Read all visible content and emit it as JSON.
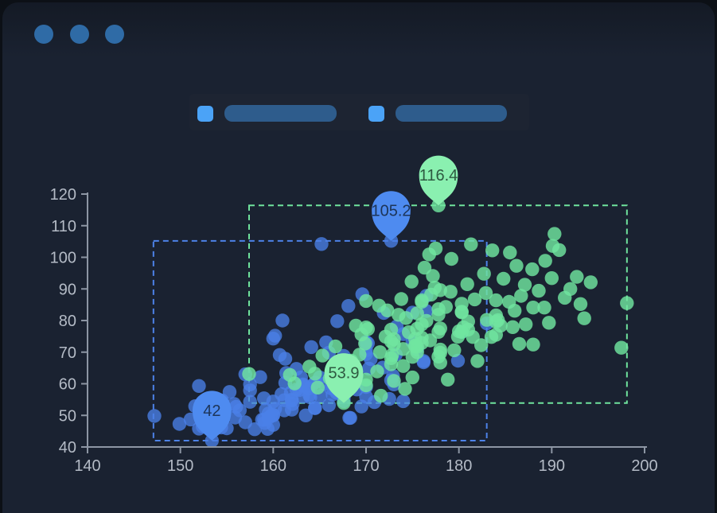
{
  "window": {
    "controls": [
      {
        "name": "window-dot-1",
        "color": "#2f6ba6"
      },
      {
        "name": "window-dot-2",
        "color": "#2f6ba6"
      },
      {
        "name": "window-dot-3",
        "color": "#2f6ba6"
      }
    ],
    "background": "#1a2231",
    "outer_background": "#0c1016"
  },
  "legend": {
    "items": [
      {
        "swatch_color": "#4ba3f7",
        "bar_color": "#2e5c8c"
      },
      {
        "swatch_color": "#4ba3f7",
        "bar_color": "#2e5c8c"
      }
    ]
  },
  "chart_data": {
    "type": "scatter",
    "title": "",
    "xlabel": "",
    "ylabel": "",
    "grid": false,
    "legend_position": "top",
    "x_axis": {
      "min": 140,
      "max": 200,
      "ticks": [
        140,
        150,
        160,
        170,
        180,
        190,
        200
      ]
    },
    "y_axis": {
      "min": 40,
      "max": 120,
      "ticks": [
        40,
        50,
        60,
        70,
        80,
        90,
        100,
        110,
        120
      ]
    },
    "axis_color": "#8d96a4",
    "tick_label_color": "#b4bbc6",
    "series": [
      {
        "name": "blue",
        "dot_color": "#4a80e8",
        "dot_opacity": 0.78,
        "pin_color": "#4e8bf0",
        "pin_label_color": "#1d3558",
        "area_stroke": "#4d82e8",
        "mark_area": {
          "x": [
            147.1,
            183.0
          ],
          "y": [
            42,
            105.2
          ]
        },
        "mark_points": [
          {
            "label": "105.2",
            "coord": [
              172.7,
              105.2
            ]
          },
          {
            "label": "42",
            "coord": [
              153.4,
              42
            ]
          }
        ],
        "points": [
          [
            161.2,
            51.6
          ],
          [
            167.5,
            59
          ],
          [
            159.5,
            49.2
          ],
          [
            157,
            63
          ],
          [
            155.8,
            53.6
          ],
          [
            170,
            59
          ],
          [
            159.1,
            47.6
          ],
          [
            166,
            69.8
          ],
          [
            176.2,
            66.8
          ],
          [
            160.2,
            75.2
          ],
          [
            172.5,
            55.2
          ],
          [
            170.9,
            54.2
          ],
          [
            172.9,
            62.5
          ],
          [
            153.4,
            42
          ],
          [
            160,
            50
          ],
          [
            147.2,
            49.8
          ],
          [
            168.2,
            49.2
          ],
          [
            175,
            73.2
          ],
          [
            157,
            47.8
          ],
          [
            167.6,
            68.8
          ],
          [
            159.5,
            50.6
          ],
          [
            175,
            82.5
          ],
          [
            166.8,
            57.2
          ],
          [
            176.5,
            87.8
          ],
          [
            170.2,
            72.8
          ],
          [
            174,
            54.5
          ],
          [
            173,
            59.8
          ],
          [
            179.9,
            67.3
          ],
          [
            170.5,
            67.8
          ],
          [
            160,
            47
          ],
          [
            154.4,
            46.2
          ],
          [
            162,
            55
          ],
          [
            176.5,
            83
          ],
          [
            160,
            54.4
          ],
          [
            152,
            45.8
          ],
          [
            162.1,
            53.6
          ],
          [
            170,
            73.2
          ],
          [
            160.2,
            52.1
          ],
          [
            161.3,
            67.9
          ],
          [
            166.4,
            56.6
          ],
          [
            168.9,
            62.3
          ],
          [
            163.8,
            58.5
          ],
          [
            167.6,
            54.5
          ],
          [
            160,
            50.2
          ],
          [
            161.3,
            60.3
          ],
          [
            167.6,
            58.3
          ],
          [
            165.1,
            56.2
          ],
          [
            159.2,
            51.8
          ],
          [
            170,
            72.9
          ],
          [
            157.5,
            59.8
          ],
          [
            167.6,
            61
          ],
          [
            160.7,
            69.1
          ],
          [
            163.2,
            55.9
          ],
          [
            152.4,
            46.5
          ],
          [
            157.5,
            54.3
          ],
          [
            168.3,
            49.2
          ],
          [
            180.3,
            76.4
          ],
          [
            165.5,
            60
          ],
          [
            165,
            62
          ],
          [
            164.5,
            60.3
          ],
          [
            156,
            52.7
          ],
          [
            160,
            74.3
          ],
          [
            163,
            62
          ],
          [
            165.7,
            73.1
          ],
          [
            161,
            80
          ],
          [
            162,
            54.7
          ],
          [
            166,
            53.2
          ],
          [
            174,
            75.7
          ],
          [
            172.7,
            61.1
          ],
          [
            167.6,
            55.7
          ],
          [
            151.1,
            48.7
          ],
          [
            164.5,
            52.3
          ],
          [
            163.5,
            50
          ],
          [
            152,
            59.3
          ],
          [
            169,
            62.5
          ],
          [
            164,
            55.7
          ],
          [
            161.2,
            54.8
          ],
          [
            155,
            45.9
          ],
          [
            170,
            70.6
          ],
          [
            176.2,
            67.2
          ],
          [
            170,
            69.4
          ],
          [
            162.5,
            58.2
          ],
          [
            170.3,
            64.8
          ],
          [
            164.1,
            71.6
          ],
          [
            169.5,
            52.8
          ],
          [
            163.2,
            59.8
          ],
          [
            154.5,
            49
          ],
          [
            159.8,
            50
          ],
          [
            173.2,
            69.2
          ],
          [
            170,
            55.9
          ],
          [
            161.4,
            63.4
          ],
          [
            169,
            58.2
          ],
          [
            166.2,
            58.6
          ],
          [
            159.4,
            45.7
          ],
          [
            162.5,
            64.7
          ],
          [
            159,
            55.4
          ],
          [
            162.8,
            58
          ],
          [
            159,
            48.6
          ],
          [
            166.8,
            57.8
          ],
          [
            163.2,
            59.4
          ],
          [
            154.5,
            54.7
          ],
          [
            152.7,
            48.6
          ],
          [
            162,
            51.8
          ],
          [
            158.8,
            48.6
          ],
          [
            172.7,
            105.2
          ],
          [
            175.5,
            70.9
          ],
          [
            157.5,
            57.9
          ],
          [
            164.5,
            52.3
          ],
          [
            173.3,
            78.1
          ],
          [
            156.4,
            51.6
          ],
          [
            164.1,
            59.3
          ],
          [
            158,
            45.6
          ],
          [
            165.2,
            104.2
          ],
          [
            183,
            79.1
          ],
          [
            163.9,
            56.4
          ],
          [
            161.9,
            57.2
          ],
          [
            171.8,
            65.1
          ],
          [
            155.9,
            49.3
          ],
          [
            160.9,
            56.7
          ],
          [
            166.5,
            64.9
          ],
          [
            169.6,
            88.3
          ],
          [
            168.1,
            84.6
          ],
          [
            171.9,
            82.4
          ],
          [
            166.9,
            79.8
          ],
          [
            149.9,
            47.3
          ],
          [
            151.6,
            52.9
          ],
          [
            158.6,
            62.1
          ],
          [
            155.3,
            57.4
          ]
        ]
      },
      {
        "name": "green",
        "dot_color": "#70e5a0",
        "dot_opacity": 0.82,
        "pin_color": "#8af0b0",
        "pin_label_color": "#2e5a41",
        "area_stroke": "#6fe39d",
        "mark_area": {
          "x": [
            157.4,
            198.1
          ],
          "y": [
            53.9,
            116.4
          ]
        },
        "mark_points": [
          {
            "label": "116.4",
            "coord": [
              177.8,
              116.4
            ]
          },
          {
            "label": "53.9",
            "coord": [
              167.6,
              53.9
            ]
          }
        ],
        "points": [
          [
            174,
            65.6
          ],
          [
            175.3,
            71.8
          ],
          [
            193.5,
            80.7
          ],
          [
            186.5,
            72.6
          ],
          [
            187.2,
            78.8
          ],
          [
            181.5,
            74.8
          ],
          [
            184,
            86.4
          ],
          [
            184.5,
            78.4
          ],
          [
            175,
            62
          ],
          [
            184,
            81.6
          ],
          [
            180,
            76.6
          ],
          [
            177.8,
            83.6
          ],
          [
            192,
            90
          ],
          [
            176,
            74.6
          ],
          [
            174,
            71
          ],
          [
            184,
            79.6
          ],
          [
            192.7,
            93.8
          ],
          [
            171.5,
            70
          ],
          [
            173,
            72.4
          ],
          [
            176,
            85.9
          ],
          [
            176,
            78.8
          ],
          [
            180.5,
            77.8
          ],
          [
            172.7,
            66.2
          ],
          [
            176,
            86.4
          ],
          [
            173.5,
            81.8
          ],
          [
            178,
            89.6
          ],
          [
            180.3,
            82.8
          ],
          [
            180.3,
            76.4
          ],
          [
            164.5,
            63.2
          ],
          [
            173,
            60.9
          ],
          [
            183.5,
            74.8
          ],
          [
            175.5,
            70
          ],
          [
            188,
            72.4
          ],
          [
            189.2,
            84.1
          ],
          [
            172.8,
            69.1
          ],
          [
            170,
            59.5
          ],
          [
            182,
            67.2
          ],
          [
            170,
            61.3
          ],
          [
            177.8,
            68.6
          ],
          [
            184.2,
            80.1
          ],
          [
            186.7,
            87.8
          ],
          [
            171.4,
            84.7
          ],
          [
            172.7,
            73.4
          ],
          [
            175.3,
            72.1
          ],
          [
            180.3,
            82.6
          ],
          [
            182.9,
            88.7
          ],
          [
            188,
            84.1
          ],
          [
            177.2,
            94.1
          ],
          [
            172.1,
            74.9
          ],
          [
            167,
            59.1
          ],
          [
            169.5,
            75.6
          ],
          [
            170,
            86.2
          ],
          [
            178,
            69.8
          ],
          [
            178,
            66.7
          ],
          [
            167,
            64.6
          ],
          [
            170,
            77.8
          ],
          [
            178,
            70.8
          ],
          [
            177.8,
            116.4
          ],
          [
            167.6,
            53.9
          ],
          [
            157.4,
            63.1
          ],
          [
            198.1,
            85.5
          ],
          [
            175.5,
            77.4
          ],
          [
            181,
            77.1
          ],
          [
            175,
            68.5
          ],
          [
            172.7,
            77.1
          ],
          [
            175.5,
            71.7
          ],
          [
            183,
            80.2
          ],
          [
            180.3,
            85.3
          ],
          [
            177.8,
            81.8
          ],
          [
            177.8,
            76.4
          ],
          [
            170.2,
            77.3
          ],
          [
            179.9,
            74.9
          ],
          [
            172.7,
            68.1
          ],
          [
            175.5,
            82.3
          ],
          [
            173,
            74.1
          ],
          [
            184,
            75.5
          ],
          [
            176,
            72.9
          ],
          [
            181,
            79.7
          ],
          [
            175.3,
            74.2
          ],
          [
            178,
            77.5
          ],
          [
            179.1,
            89.1
          ],
          [
            176.5,
            79.9
          ],
          [
            190,
            93.4
          ],
          [
            185.4,
            85.9
          ],
          [
            187.1,
            91.3
          ],
          [
            163.9,
            65.4
          ],
          [
            169.3,
            69.2
          ],
          [
            166.1,
            61.7
          ],
          [
            177,
            88.2
          ],
          [
            174.6,
            76.3
          ],
          [
            182.4,
            72.2
          ],
          [
            186,
            83.1
          ],
          [
            179.5,
            70.6
          ],
          [
            188.6,
            89.4
          ],
          [
            171.2,
            63.9
          ],
          [
            168.4,
            67.3
          ],
          [
            180.9,
            91.5
          ],
          [
            174.3,
            80.8
          ],
          [
            185.8,
            77.9
          ],
          [
            176.9,
            73.7
          ],
          [
            161.8,
            62.8
          ],
          [
            165.3,
            68.9
          ],
          [
            191.4,
            87.2
          ],
          [
            194.2,
            92.1
          ],
          [
            178.6,
            84.3
          ],
          [
            169.9,
            72.7
          ],
          [
            173.8,
            86.8
          ],
          [
            182.7,
            94.8
          ],
          [
            187.9,
            96.2
          ],
          [
            177.4,
            90.4
          ],
          [
            172.3,
            83.2
          ],
          [
            166.7,
            71.8
          ],
          [
            181.7,
            86.7
          ],
          [
            189.7,
            79.3
          ],
          [
            176.3,
            96.7
          ],
          [
            179.2,
            99.5
          ],
          [
            184.8,
            93.2
          ],
          [
            190.8,
            102.3
          ],
          [
            168.9,
            78.4
          ],
          [
            174.9,
            92.3
          ],
          [
            185.5,
            101.5
          ],
          [
            189.3,
            98.9
          ],
          [
            190.1,
            103.6
          ],
          [
            177.5,
            102.8
          ],
          [
            181.3,
            104.1
          ],
          [
            186.2,
            97.3
          ],
          [
            176.8,
            100.9
          ],
          [
            183.6,
            102.2
          ],
          [
            190.3,
            107.4
          ],
          [
            197.5,
            71.4
          ],
          [
            174.2,
            58.4
          ],
          [
            171.6,
            56.2
          ],
          [
            178.8,
            61.3
          ],
          [
            164.8,
            58.8
          ],
          [
            162.3,
            60.1
          ],
          [
            193.1,
            85.2
          ]
        ]
      }
    ]
  }
}
